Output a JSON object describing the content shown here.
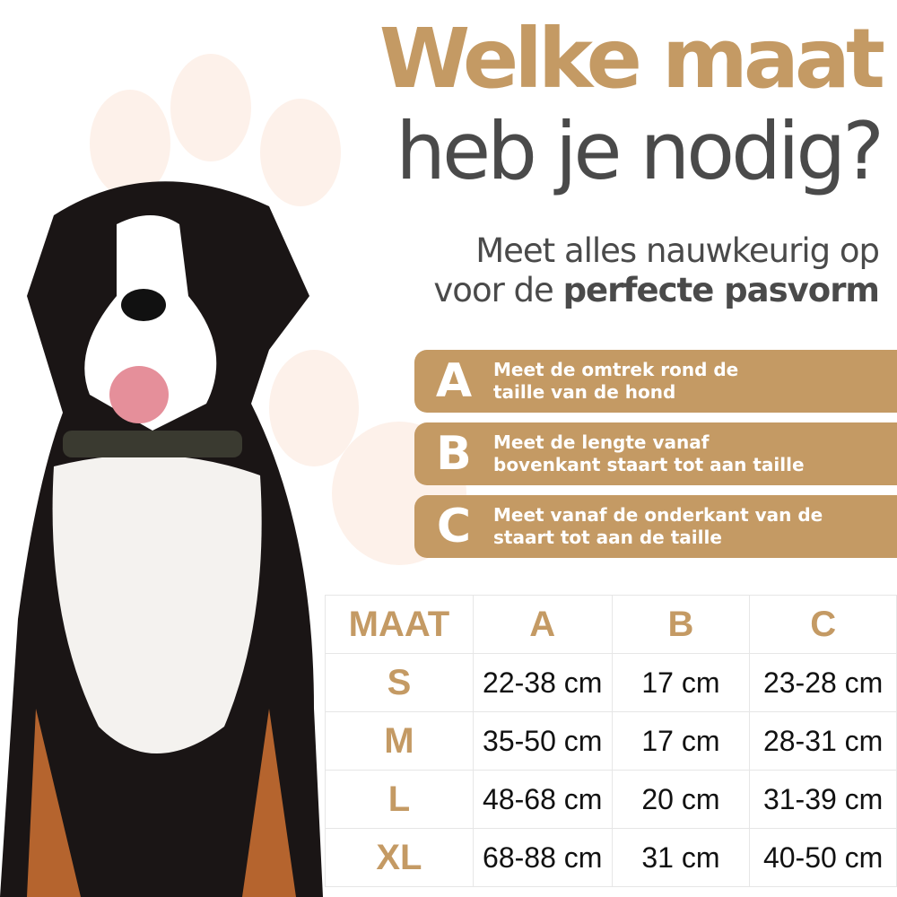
{
  "title_line1": "Welke maat",
  "title_line2": "heb je nodig?",
  "subtitle_line1": "Meet alles nauwkeurig op",
  "subtitle_line2_prefix": "voor de ",
  "subtitle_line2_bold": "perfecte pasvorm",
  "colors": {
    "accent": "#c49a64",
    "text": "#4a4a4a",
    "paw": "#fdf1ea"
  },
  "steps": [
    {
      "letter": "A",
      "line1": "Meet de omtrek rond de",
      "line2": "taille van de hond"
    },
    {
      "letter": "B",
      "line1": "Meet de lengte vanaf",
      "line2": "bovenkant staart tot aan taille"
    },
    {
      "letter": "C",
      "line1": "Meet vanaf de onderkant van de",
      "line2": "staart tot aan de taille"
    }
  ],
  "table": {
    "headers": [
      "MAAT",
      "A",
      "B",
      "C"
    ],
    "rows": [
      [
        "S",
        "22-38 cm",
        "17 cm",
        "23-28 cm"
      ],
      [
        "M",
        "35-50 cm",
        "17 cm",
        "28-31 cm"
      ],
      [
        "L",
        "48-68 cm",
        "20 cm",
        "31-39 cm"
      ],
      [
        "XL",
        "68-88 cm",
        "31 cm",
        "40-50 cm"
      ]
    ]
  }
}
